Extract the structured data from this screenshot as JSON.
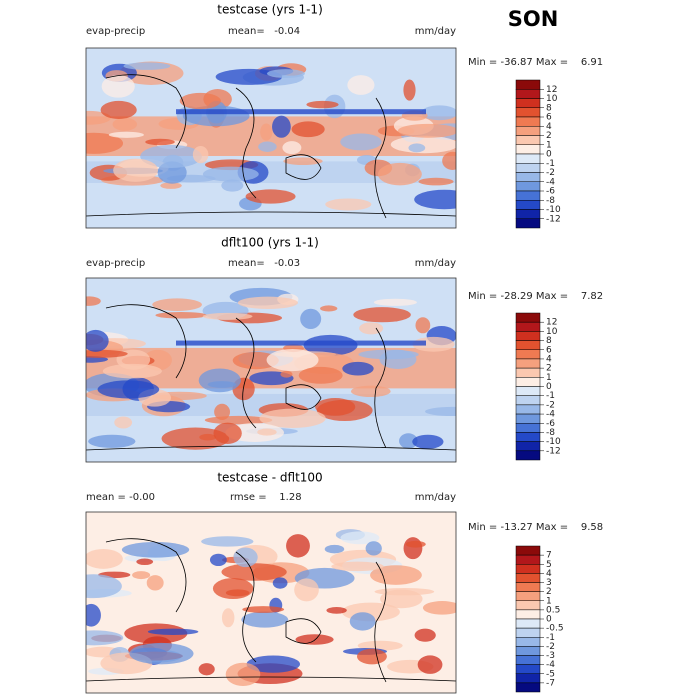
{
  "season": "SON",
  "colors": [
    "#8b0a0a",
    "#b2171b",
    "#d0301f",
    "#e2522f",
    "#ef7a52",
    "#f5a07e",
    "#fbc8b0",
    "#fdeee5",
    "#dde9f7",
    "#bed3f0",
    "#98b8e8",
    "#6f98de",
    "#4672d6",
    "#2449c8",
    "#1024a8",
    "#050a80"
  ],
  "panels": [
    {
      "title": "testcase (yrs 1-1)",
      "left_label": "evap-precip",
      "center_label": "mean=   -0.04",
      "right_label": "mm/day",
      "stats": "Min = -36.87 Max =    6.91",
      "colorbar_ticks": [
        12,
        10,
        8,
        6,
        4,
        2,
        1,
        0,
        -1,
        -2,
        -4,
        -6,
        -8,
        -10,
        -12
      ]
    },
    {
      "title": "dflt100 (yrs 1-1)",
      "left_label": "evap-precip",
      "center_label": "mean=   -0.03",
      "right_label": "mm/day",
      "stats": "Min = -28.29 Max =    7.82",
      "colorbar_ticks": [
        12,
        10,
        8,
        6,
        4,
        2,
        1,
        0,
        -1,
        -2,
        -4,
        -6,
        -8,
        -10,
        -12
      ]
    },
    {
      "title": "testcase - dflt100",
      "left_label": "mean =   -0.00",
      "center_label": "rmse =    1.28",
      "right_label": "mm/day",
      "stats": "Min = -13.27 Max =    9.58",
      "colorbar_ticks": [
        7,
        5,
        4,
        3,
        2,
        1,
        0.5,
        0,
        -0.5,
        -1,
        -2,
        -3,
        -4,
        -5,
        -7
      ]
    }
  ]
}
